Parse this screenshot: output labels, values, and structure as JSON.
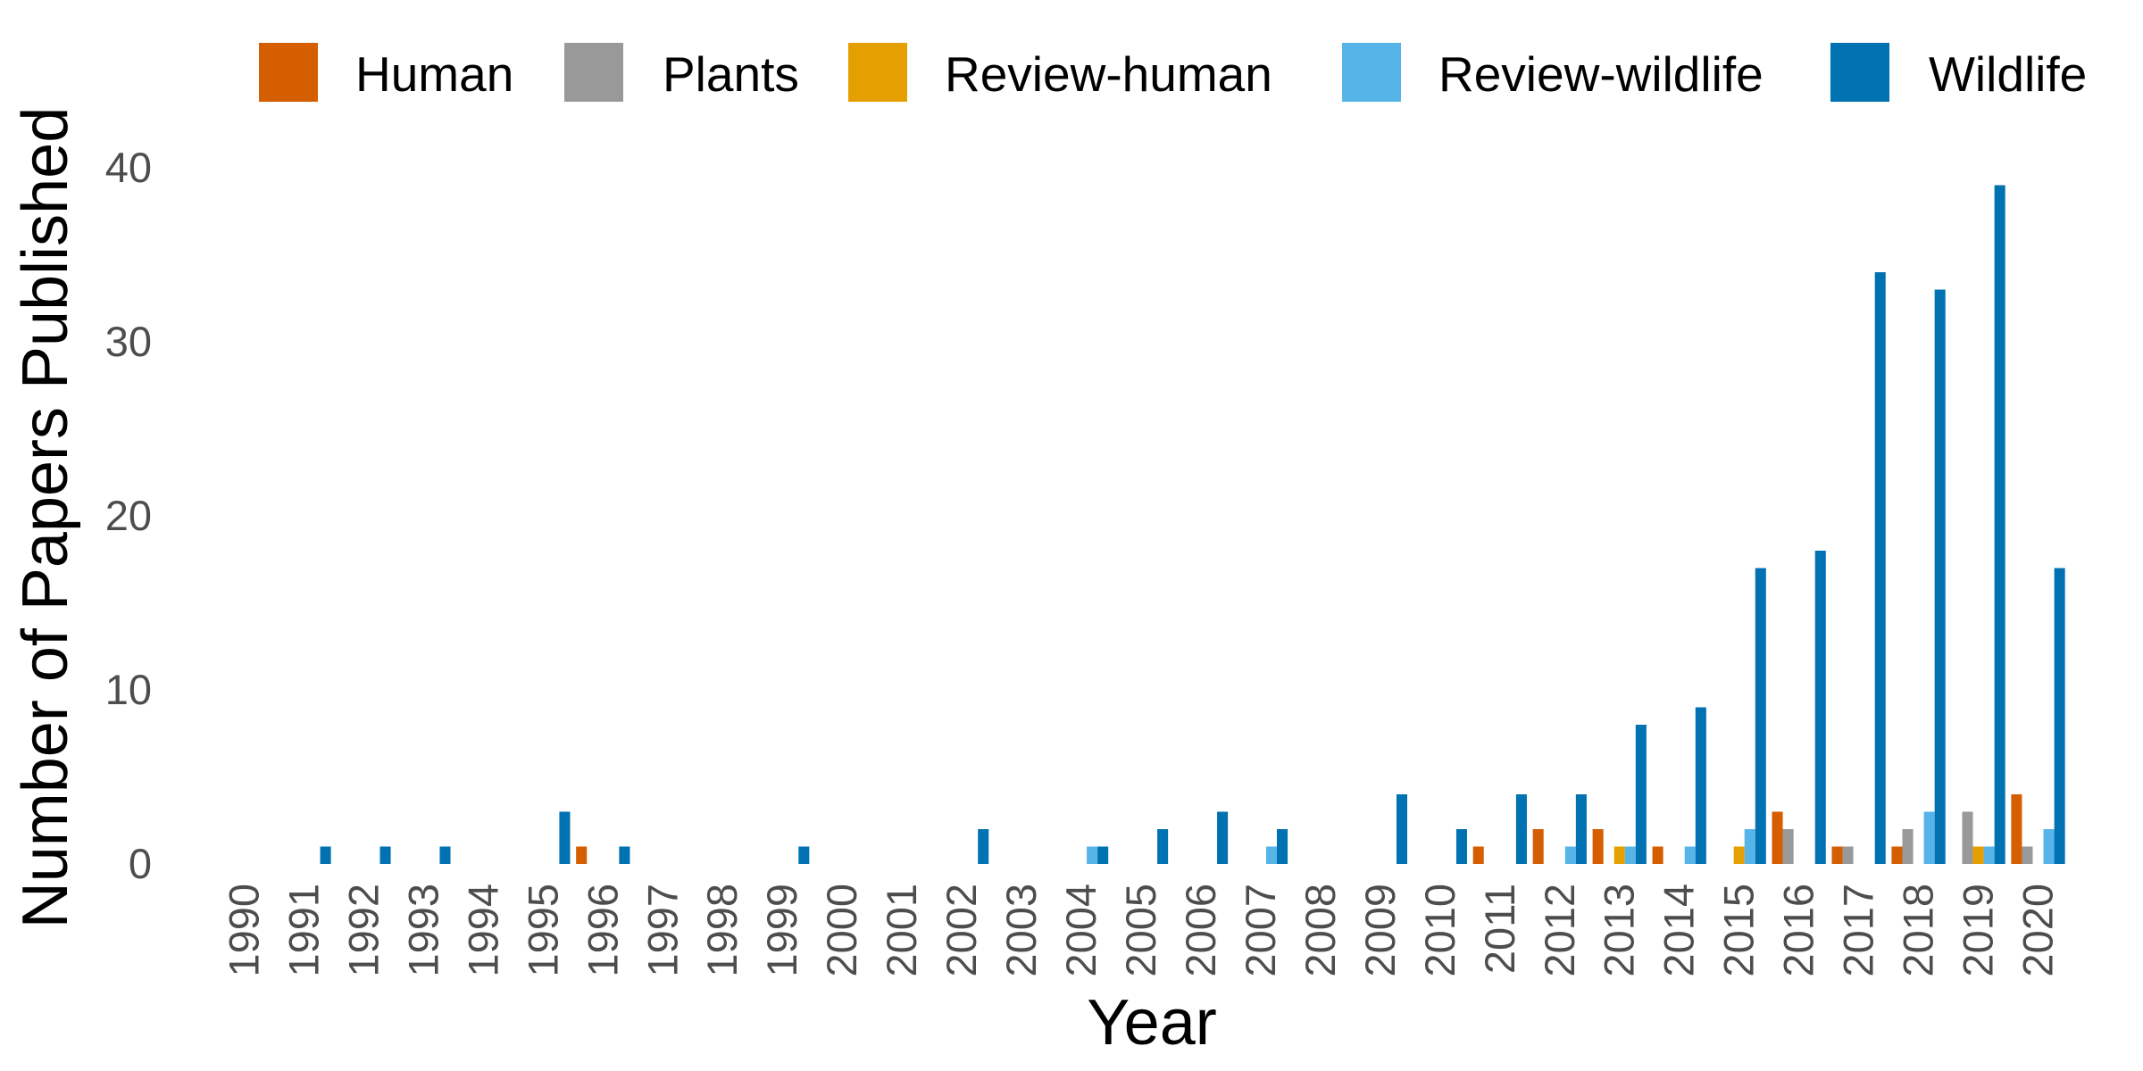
{
  "chart_data": {
    "type": "bar",
    "title": "",
    "xlabel": "Year",
    "ylabel": "Number of Papers Published",
    "ylim": [
      0,
      44
    ],
    "yticks": [
      0,
      10,
      20,
      30,
      40
    ],
    "grid": false,
    "legend_position": "top",
    "categories": [
      "1990",
      "1991",
      "1992",
      "1993",
      "1994",
      "1995",
      "1996",
      "1997",
      "1998",
      "1999",
      "2000",
      "2001",
      "2002",
      "2003",
      "2004",
      "2005",
      "2006",
      "2007",
      "2008",
      "2009",
      "2010",
      "2011",
      "2012",
      "2013",
      "2014",
      "2015",
      "2016",
      "2017",
      "2018",
      "2019",
      "2020"
    ],
    "series": [
      {
        "name": "Human",
        "color": "#D55E00",
        "values": [
          0,
          0,
          0,
          0,
          0,
          0,
          1,
          0,
          0,
          0,
          0,
          0,
          0,
          0,
          0,
          0,
          0,
          0,
          0,
          0,
          0,
          1,
          2,
          2,
          1,
          0,
          3,
          1,
          1,
          0,
          4
        ]
      },
      {
        "name": "Plants",
        "color": "#999999",
        "values": [
          0,
          0,
          0,
          0,
          0,
          0,
          0,
          0,
          0,
          0,
          0,
          0,
          0,
          0,
          0,
          0,
          0,
          0,
          0,
          0,
          0,
          0,
          0,
          0,
          0,
          0,
          2,
          1,
          2,
          3,
          1
        ]
      },
      {
        "name": "Review-human",
        "color": "#E69F00",
        "values": [
          0,
          0,
          0,
          0,
          0,
          0,
          0,
          0,
          0,
          0,
          0,
          0,
          0,
          0,
          0,
          0,
          0,
          0,
          0,
          0,
          0,
          0,
          0,
          1,
          0,
          1,
          0,
          0,
          0,
          1,
          0
        ]
      },
      {
        "name": "Review-wildlife",
        "color": "#56B4E9",
        "values": [
          0,
          0,
          0,
          0,
          0,
          0,
          0,
          0,
          0,
          0,
          0,
          0,
          0,
          0,
          1,
          0,
          0,
          1,
          0,
          0,
          0,
          0,
          1,
          1,
          1,
          2,
          0,
          0,
          3,
          1,
          2
        ]
      },
      {
        "name": "Wildlife",
        "color": "#0072B2",
        "values": [
          0,
          1,
          1,
          1,
          0,
          3,
          1,
          0,
          0,
          1,
          0,
          0,
          2,
          0,
          1,
          2,
          3,
          2,
          0,
          4,
          2,
          4,
          4,
          8,
          9,
          17,
          18,
          34,
          33,
          39,
          17
        ]
      }
    ]
  }
}
